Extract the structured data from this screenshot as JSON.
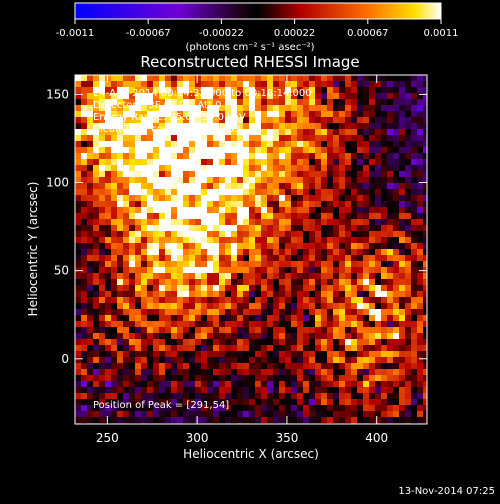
{
  "chart_data": {
    "type": "heatmap",
    "title": "Reconstructed RHESSI Image",
    "xlabel": "Heliocentric X (arcsec)",
    "ylabel": "Heliocentric Y (arcsec)",
    "xlim": [
      232,
      428
    ],
    "ylim": [
      -37,
      161
    ],
    "x_ticks": [
      250,
      300,
      350,
      400
    ],
    "y_ticks": [
      0,
      50,
      100,
      150
    ],
    "colorbar": {
      "ticks": [
        "-0.0011",
        "-0.00067",
        "-0.00022",
        "0.00022",
        "0.00067",
        "0.0011"
      ],
      "unit_label": "(photons cm⁻² s⁻¹ asec⁻²)",
      "range": [
        -0.0011,
        0.0011
      ]
    },
    "annotations": [
      "24-Aug-2014 00:14:32.000 to 00:18:14.000",
      "Detectors: 3F 6F 9F, Att 0",
      "Energy Range: 25.0 - 50.0 keV",
      "Clean     Total counts: 4.02E+03"
    ],
    "peak_label": "Position of Peak = [291,54]",
    "peak_position": [
      291,
      54
    ],
    "footer_date": "13-Nov-2014 07:25"
  }
}
